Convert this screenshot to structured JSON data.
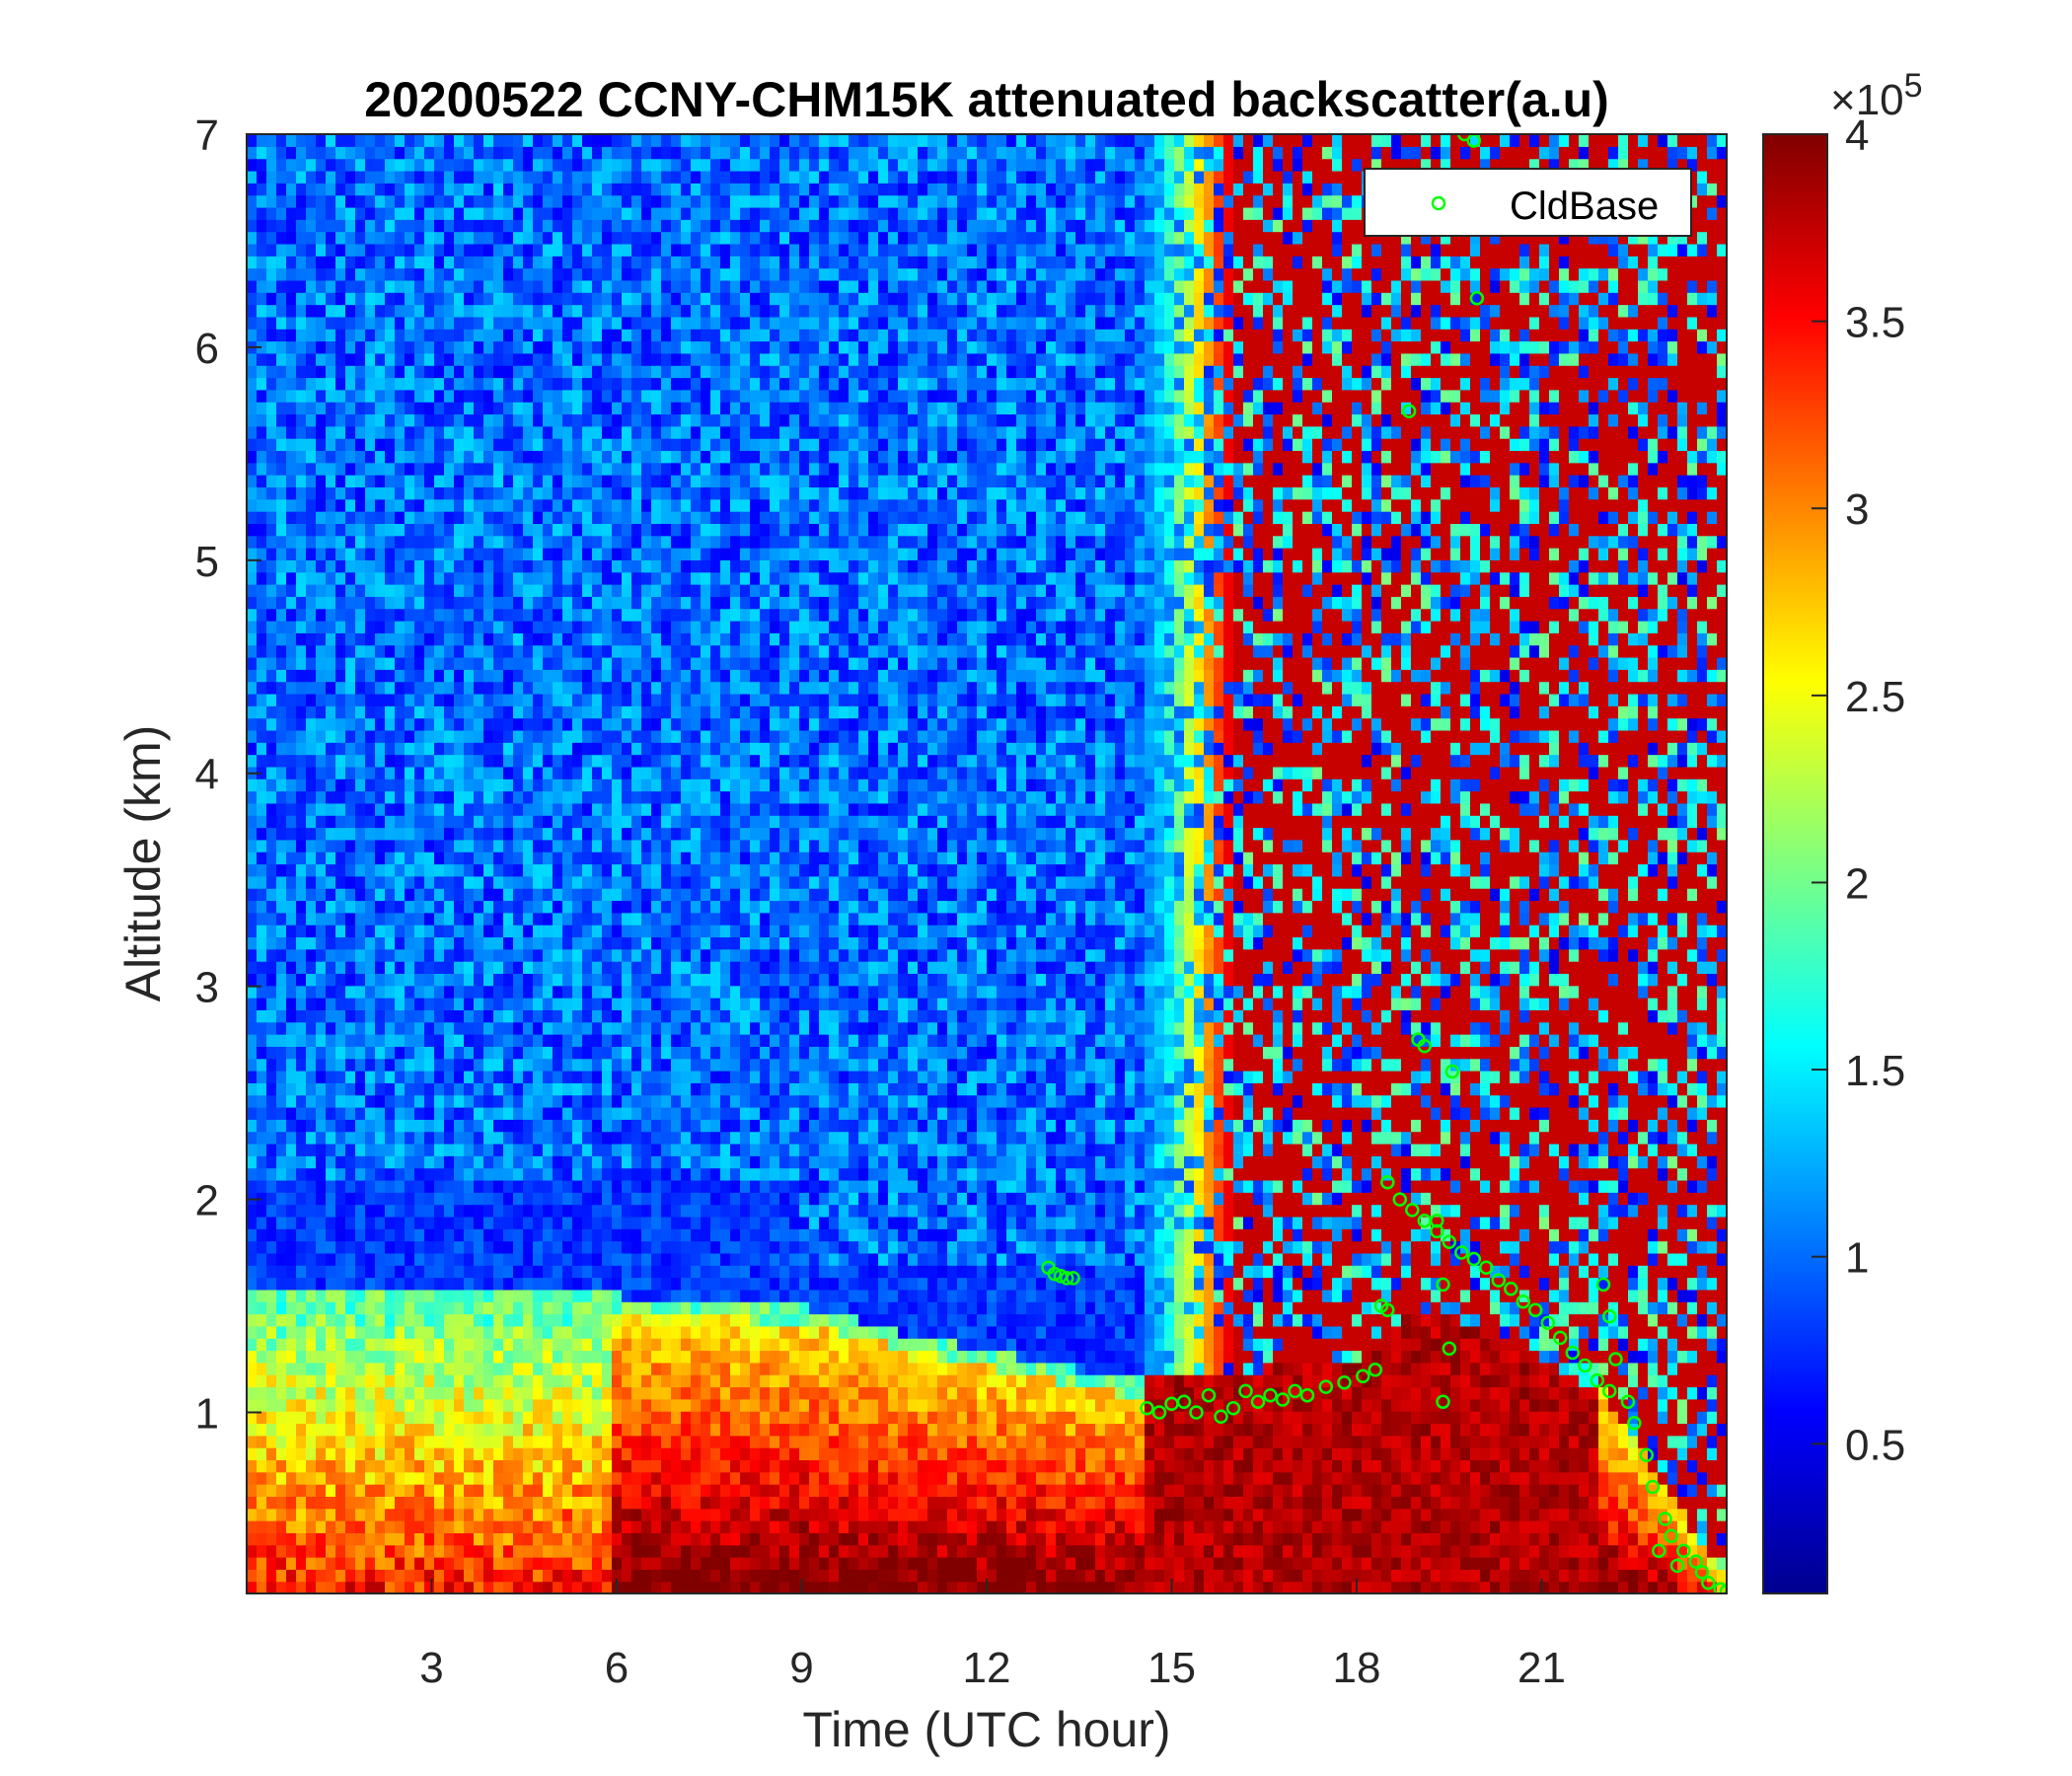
{
  "chart_data": {
    "type": "heatmap",
    "title": "20200522 CCNY-CHM15K attenuated backscatter(a.u)",
    "xlabel": "Time (UTC hour)",
    "ylabel": "Altitude (km)",
    "xlim": [
      0,
      24
    ],
    "ylim": [
      0.15,
      7
    ],
    "x_ticks": [
      "3",
      "6",
      "9",
      "12",
      "15",
      "18",
      "21"
    ],
    "y_ticks": [
      "1",
      "2",
      "3",
      "4",
      "5",
      "6",
      "7"
    ],
    "colorbar": {
      "colormap": "jet",
      "range": [
        0.1,
        4
      ],
      "ticks": [
        "0.5",
        "1",
        "1.5",
        "2",
        "2.5",
        "3",
        "3.5",
        "4"
      ],
      "multiplier_base": "×10",
      "multiplier_exp": "5"
    },
    "legend": {
      "position": "top-right",
      "entries": [
        "CldBase"
      ]
    },
    "layers": {
      "clean_aerosol_top_km": 1.55,
      "residual_layer_top_km": 2.1,
      "boundary_layer": [
        {
          "t": 0,
          "top": 1.6
        },
        {
          "t": 3,
          "top": 1.55
        },
        {
          "t": 6,
          "top": 1.55
        },
        {
          "t": 9,
          "top": 1.5
        },
        {
          "t": 11,
          "top": 1.35
        },
        {
          "t": 14.5,
          "top": 1.15
        },
        {
          "t": 18,
          "top": 1.25
        },
        {
          "t": 19,
          "top": 1.5
        },
        {
          "t": 22,
          "top": 1.1
        },
        {
          "t": 24,
          "top": 0.2
        }
      ]
    },
    "series": [
      {
        "name": "CldBase",
        "marker": "circle",
        "color": "#00ff00",
        "points": [
          {
            "x": 13.0,
            "y": 1.68
          },
          {
            "x": 13.1,
            "y": 1.65
          },
          {
            "x": 13.2,
            "y": 1.64
          },
          {
            "x": 13.3,
            "y": 1.63
          },
          {
            "x": 13.4,
            "y": 1.63
          },
          {
            "x": 14.6,
            "y": 1.02
          },
          {
            "x": 14.8,
            "y": 1.0
          },
          {
            "x": 15.0,
            "y": 1.04
          },
          {
            "x": 15.2,
            "y": 1.05
          },
          {
            "x": 15.4,
            "y": 1.0
          },
          {
            "x": 15.6,
            "y": 1.08
          },
          {
            "x": 15.8,
            "y": 0.98
          },
          {
            "x": 16.0,
            "y": 1.02
          },
          {
            "x": 16.2,
            "y": 1.1
          },
          {
            "x": 16.4,
            "y": 1.05
          },
          {
            "x": 16.6,
            "y": 1.08
          },
          {
            "x": 16.8,
            "y": 1.06
          },
          {
            "x": 17.0,
            "y": 1.1
          },
          {
            "x": 17.2,
            "y": 1.08
          },
          {
            "x": 17.5,
            "y": 1.12
          },
          {
            "x": 17.8,
            "y": 1.14
          },
          {
            "x": 18.1,
            "y": 1.17
          },
          {
            "x": 18.3,
            "y": 1.2
          },
          {
            "x": 18.4,
            "y": 1.5
          },
          {
            "x": 18.5,
            "y": 1.48
          },
          {
            "x": 18.85,
            "y": 5.7
          },
          {
            "x": 19.0,
            "y": 2.75
          },
          {
            "x": 19.1,
            "y": 2.72
          },
          {
            "x": 19.55,
            "y": 2.6
          },
          {
            "x": 19.75,
            "y": 7.0
          },
          {
            "x": 19.9,
            "y": 6.97
          },
          {
            "x": 19.95,
            "y": 6.23
          },
          {
            "x": 19.3,
            "y": 1.9
          },
          {
            "x": 19.4,
            "y": 1.6
          },
          {
            "x": 19.5,
            "y": 1.3
          },
          {
            "x": 19.4,
            "y": 1.05
          },
          {
            "x": 18.5,
            "y": 2.08
          },
          {
            "x": 18.7,
            "y": 2.0
          },
          {
            "x": 18.9,
            "y": 1.95
          },
          {
            "x": 19.1,
            "y": 1.9
          },
          {
            "x": 19.3,
            "y": 1.85
          },
          {
            "x": 19.5,
            "y": 1.8
          },
          {
            "x": 19.7,
            "y": 1.75
          },
          {
            "x": 19.9,
            "y": 1.72
          },
          {
            "x": 20.1,
            "y": 1.68
          },
          {
            "x": 20.3,
            "y": 1.62
          },
          {
            "x": 20.5,
            "y": 1.58
          },
          {
            "x": 20.7,
            "y": 1.52
          },
          {
            "x": 20.9,
            "y": 1.48
          },
          {
            "x": 21.1,
            "y": 1.42
          },
          {
            "x": 21.3,
            "y": 1.35
          },
          {
            "x": 21.5,
            "y": 1.28
          },
          {
            "x": 21.7,
            "y": 1.22
          },
          {
            "x": 21.9,
            "y": 1.15
          },
          {
            "x": 22.1,
            "y": 1.1
          },
          {
            "x": 22.0,
            "y": 1.6
          },
          {
            "x": 22.1,
            "y": 1.45
          },
          {
            "x": 22.2,
            "y": 1.25
          },
          {
            "x": 22.4,
            "y": 1.05
          },
          {
            "x": 22.5,
            "y": 0.95
          },
          {
            "x": 22.7,
            "y": 0.8
          },
          {
            "x": 22.8,
            "y": 0.65
          },
          {
            "x": 23.0,
            "y": 0.5
          },
          {
            "x": 23.1,
            "y": 0.42
          },
          {
            "x": 23.3,
            "y": 0.35
          },
          {
            "x": 23.5,
            "y": 0.3
          },
          {
            "x": 23.6,
            "y": 0.25
          },
          {
            "x": 23.7,
            "y": 0.2
          },
          {
            "x": 23.9,
            "y": 0.17
          },
          {
            "x": 24.0,
            "y": 0.16
          },
          {
            "x": 22.9,
            "y": 0.35
          },
          {
            "x": 23.2,
            "y": 0.28
          }
        ]
      }
    ]
  }
}
